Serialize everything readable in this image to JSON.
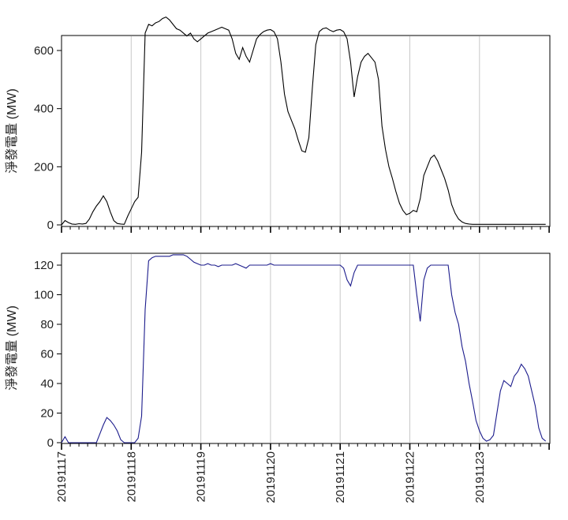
{
  "chart_data": [
    {
      "type": "line",
      "ylabel": "淨發電量 (MW)",
      "ylim": [
        0,
        730
      ],
      "yticks": [
        0,
        200,
        400,
        600
      ],
      "line_color": "#000000",
      "grid": true,
      "x": [
        0,
        0.05,
        0.1,
        0.15,
        0.2,
        0.25,
        0.3,
        0.35,
        0.4,
        0.45,
        0.5,
        0.55,
        0.6,
        0.65,
        0.7,
        0.75,
        0.8,
        0.85,
        0.9,
        0.95,
        1.0,
        1.05,
        1.1,
        1.15,
        1.2,
        1.25,
        1.3,
        1.35,
        1.4,
        1.45,
        1.5,
        1.55,
        1.6,
        1.65,
        1.7,
        1.75,
        1.8,
        1.85,
        1.9,
        1.95,
        2.0,
        2.05,
        2.1,
        2.15,
        2.2,
        2.25,
        2.3,
        2.35,
        2.4,
        2.45,
        2.5,
        2.55,
        2.6,
        2.65,
        2.7,
        2.75,
        2.8,
        2.85,
        2.9,
        2.95,
        3.0,
        3.05,
        3.1,
        3.15,
        3.2,
        3.25,
        3.3,
        3.35,
        3.4,
        3.45,
        3.5,
        3.55,
        3.6,
        3.65,
        3.7,
        3.75,
        3.8,
        3.85,
        3.9,
        3.95,
        4.0,
        4.05,
        4.1,
        4.15,
        4.2,
        4.25,
        4.3,
        4.35,
        4.4,
        4.45,
        4.5,
        4.55,
        4.6,
        4.65,
        4.7,
        4.75,
        4.8,
        4.85,
        4.9,
        4.95,
        5.0,
        5.05,
        5.1,
        5.15,
        5.2,
        5.25,
        5.3,
        5.35,
        5.4,
        5.45,
        5.5,
        5.55,
        5.6,
        5.65,
        5.7,
        5.75,
        5.8,
        5.85,
        5.9,
        5.95,
        6.0,
        6.05,
        6.1,
        6.15,
        6.2,
        6.25,
        6.3,
        6.35,
        6.4,
        6.45,
        6.5,
        6.55,
        6.6,
        6.65,
        6.7,
        6.75,
        6.8,
        6.85,
        6.9,
        6.95
      ],
      "values": [
        0,
        15,
        8,
        3,
        2,
        4,
        3,
        5,
        20,
        45,
        65,
        80,
        100,
        80,
        45,
        15,
        5,
        3,
        2,
        30,
        55,
        80,
        95,
        250,
        660,
        690,
        685,
        695,
        700,
        710,
        715,
        705,
        690,
        675,
        670,
        660,
        650,
        660,
        640,
        630,
        640,
        650,
        660,
        665,
        670,
        675,
        680,
        675,
        670,
        640,
        590,
        570,
        610,
        580,
        560,
        600,
        640,
        655,
        665,
        670,
        672,
        665,
        640,
        560,
        450,
        390,
        360,
        330,
        290,
        255,
        250,
        300,
        470,
        620,
        665,
        675,
        678,
        670,
        665,
        670,
        672,
        665,
        640,
        560,
        440,
        510,
        560,
        580,
        590,
        575,
        560,
        500,
        340,
        260,
        200,
        160,
        115,
        75,
        50,
        35,
        40,
        50,
        45,
        90,
        170,
        200,
        230,
        240,
        220,
        190,
        160,
        120,
        70,
        40,
        20,
        10,
        5,
        3,
        2,
        2,
        2,
        2,
        2,
        2,
        2,
        2,
        2,
        2,
        2,
        2,
        2,
        2,
        2,
        2,
        2,
        2,
        2,
        2,
        2,
        2
      ]
    },
    {
      "type": "line",
      "ylabel": "淨發電量 (MW)",
      "ylim": [
        0,
        129
      ],
      "yticks": [
        0,
        20,
        40,
        60,
        80,
        100,
        120
      ],
      "line_color": "#1c1c8c",
      "grid": true,
      "xlabel": "",
      "x_tick_labels": [
        "20191117",
        "20191118",
        "20191119",
        "20191120",
        "20191121",
        "20191122",
        "20191123"
      ],
      "x": [
        0,
        0.05,
        0.1,
        0.15,
        0.2,
        0.25,
        0.3,
        0.35,
        0.4,
        0.45,
        0.5,
        0.55,
        0.6,
        0.65,
        0.7,
        0.75,
        0.8,
        0.85,
        0.9,
        0.95,
        1.0,
        1.05,
        1.1,
        1.15,
        1.2,
        1.25,
        1.3,
        1.35,
        1.4,
        1.45,
        1.5,
        1.55,
        1.6,
        1.65,
        1.7,
        1.75,
        1.8,
        1.85,
        1.9,
        1.95,
        2.0,
        2.05,
        2.1,
        2.15,
        2.2,
        2.25,
        2.3,
        2.35,
        2.4,
        2.45,
        2.5,
        2.55,
        2.6,
        2.65,
        2.7,
        2.75,
        2.8,
        2.85,
        2.9,
        2.95,
        3.0,
        3.05,
        3.1,
        3.15,
        3.2,
        3.25,
        3.3,
        3.35,
        3.4,
        3.45,
        3.5,
        3.55,
        3.6,
        3.65,
        3.7,
        3.75,
        3.8,
        3.85,
        3.9,
        3.95,
        4.0,
        4.05,
        4.1,
        4.15,
        4.2,
        4.25,
        4.3,
        4.35,
        4.4,
        4.45,
        4.5,
        4.55,
        4.6,
        4.65,
        4.7,
        4.75,
        4.8,
        4.85,
        4.9,
        4.95,
        5.0,
        5.05,
        5.1,
        5.15,
        5.2,
        5.25,
        5.3,
        5.35,
        5.4,
        5.45,
        5.5,
        5.55,
        5.6,
        5.65,
        5.7,
        5.75,
        5.8,
        5.85,
        5.9,
        5.95,
        6.0,
        6.05,
        6.1,
        6.15,
        6.2,
        6.25,
        6.3,
        6.35,
        6.4,
        6.45,
        6.5,
        6.55,
        6.6,
        6.65,
        6.7,
        6.75,
        6.8,
        6.85,
        6.9,
        6.95
      ],
      "values": [
        0,
        4,
        0,
        0,
        0,
        0,
        0,
        0,
        0,
        0,
        0,
        6,
        12,
        17,
        15,
        12,
        8,
        2,
        0,
        0,
        0,
        0,
        3,
        18,
        90,
        123,
        125,
        126,
        126,
        126,
        126,
        126,
        127,
        127,
        127,
        127,
        126,
        124,
        122,
        121,
        120,
        120,
        121,
        120,
        120,
        119,
        120,
        120,
        120,
        120,
        121,
        120,
        119,
        118,
        120,
        120,
        120,
        120,
        120,
        120,
        121,
        120,
        120,
        120,
        120,
        120,
        120,
        120,
        120,
        120,
        120,
        120,
        120,
        120,
        120,
        120,
        120,
        120,
        120,
        120,
        120,
        118,
        110,
        106,
        115,
        120,
        120,
        120,
        120,
        120,
        120,
        120,
        120,
        120,
        120,
        120,
        120,
        120,
        120,
        120,
        120,
        120,
        100,
        82,
        110,
        118,
        120,
        120,
        120,
        120,
        120,
        120,
        100,
        88,
        80,
        65,
        55,
        40,
        28,
        15,
        8,
        3,
        1,
        2,
        5,
        20,
        35,
        42,
        40,
        38,
        45,
        48,
        53,
        50,
        45,
        35,
        25,
        10,
        3,
        1
      ]
    }
  ]
}
